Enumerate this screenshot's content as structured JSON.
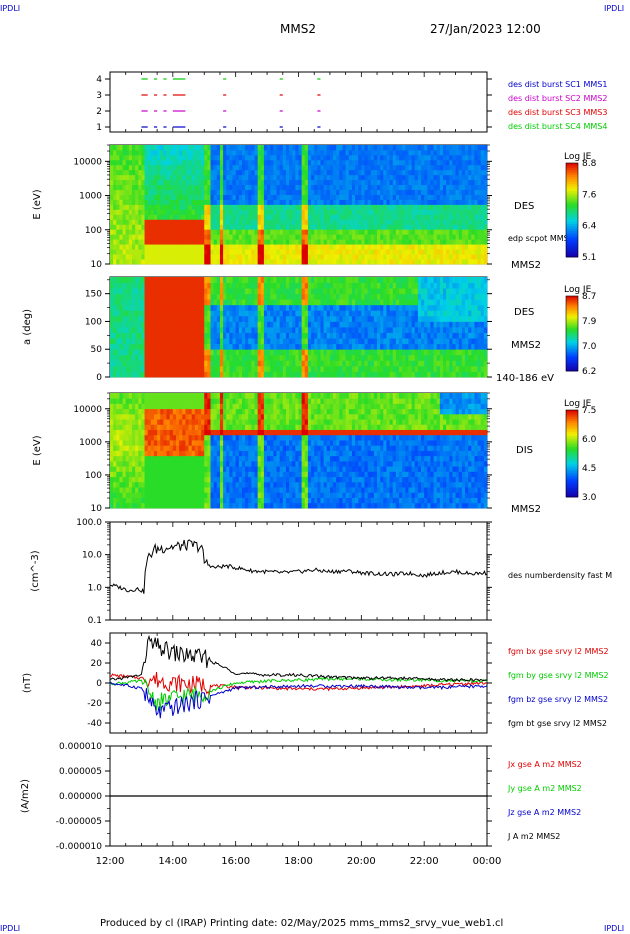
{
  "header": {
    "corner_label": "IPDLI",
    "spacecraft": "MMS2",
    "datetime": "27/Jan/2023 12:00"
  },
  "footer": {
    "text": "Produced by cl (IRAP)   Printing date: 02/May/2025   mms_mms2_srvy_vue_web1.cl"
  },
  "colors": {
    "red": "#e00000",
    "green": "#00cc00",
    "blue": "#0000cc",
    "magenta": "#cc00cc",
    "black": "#000000"
  },
  "chart_data": [
    {
      "type": "table",
      "id": "burst-availability",
      "yticks": [
        "1",
        "2",
        "3",
        "4"
      ],
      "legend": [
        {
          "label": "des dist burst SC1 MMS1",
          "color": "#0000cc"
        },
        {
          "label": "des dist burst SC2 MMS2",
          "color": "#cc00cc"
        },
        {
          "label": "des dist burst SC3 MMS3",
          "color": "#e00000"
        },
        {
          "label": "des dist burst SC4 MMS4",
          "color": "#00cc00"
        }
      ],
      "segments_hours": [
        [
          13.0,
          13.2
        ],
        [
          13.4,
          13.5
        ],
        [
          13.7,
          13.8
        ],
        [
          14.0,
          14.4
        ],
        [
          15.6,
          15.7
        ],
        [
          17.4,
          17.5
        ],
        [
          18.6,
          18.7
        ]
      ]
    },
    {
      "type": "heatmap",
      "id": "des-energy",
      "ylabel": "E (eV)",
      "yscale": "log",
      "ylim": [
        10,
        30000
      ],
      "yticks": [
        "10",
        "100",
        "1000",
        "10000"
      ],
      "label": "DES",
      "overlay_label": "edp scpot MMS2",
      "sc_label": "MMS2",
      "colorbar": {
        "title": "Log JE",
        "ticks": [
          "8.8",
          "7.6",
          "6.4",
          "5.1"
        ]
      }
    },
    {
      "type": "heatmap",
      "id": "des-pitch",
      "ylabel": "a (deg)",
      "ylim": [
        0,
        180
      ],
      "yticks": [
        "0",
        "50",
        "100",
        "150"
      ],
      "label": "DES",
      "sc_label": "MMS2",
      "energy_range": "140-186 eV",
      "colorbar": {
        "title": "Log JE",
        "ticks": [
          "8.7",
          "7.9",
          "7.0",
          "6.2"
        ]
      }
    },
    {
      "type": "heatmap",
      "id": "dis-energy",
      "ylabel": "E (eV)",
      "yscale": "log",
      "ylim": [
        10,
        30000
      ],
      "yticks": [
        "10",
        "100",
        "1000",
        "10000"
      ],
      "label": "DIS",
      "sc_label": "MMS2",
      "colorbar": {
        "title": "Log JE",
        "ticks": [
          "7.5",
          "6.0",
          "4.5",
          "3.0"
        ]
      }
    },
    {
      "type": "line",
      "id": "density",
      "ylabel": "(cm^-3)",
      "yscale": "log",
      "ylim": [
        0.1,
        100
      ],
      "yticks": [
        "0.1",
        "1.0",
        "10.0",
        "100.0"
      ],
      "series": [
        {
          "name": "des numberdensity fast M",
          "color": "#000000",
          "x": [
            12.0,
            12.3,
            12.6,
            12.9,
            13.1,
            13.15,
            13.4,
            13.8,
            14.2,
            14.6,
            14.9,
            15.0,
            15.3,
            15.7,
            16.0,
            16.5,
            17.0,
            17.5,
            18.0,
            18.5,
            19.0,
            19.5,
            20.0,
            20.5,
            21.0,
            21.5,
            22.0,
            22.5,
            23.0,
            23.5,
            24.0
          ],
          "y": [
            1.2,
            1.0,
            0.8,
            0.9,
            0.7,
            5.0,
            14.0,
            17.0,
            18.0,
            20.0,
            17.0,
            6.0,
            4.0,
            4.5,
            4.0,
            3.2,
            3.0,
            2.8,
            3.0,
            3.4,
            3.0,
            3.2,
            2.8,
            2.6,
            2.5,
            2.7,
            2.3,
            2.8,
            3.0,
            2.6,
            2.8
          ]
        }
      ]
    },
    {
      "type": "line",
      "id": "magnetic-field",
      "ylabel": "(nT)",
      "ylim": [
        -50,
        50
      ],
      "yticks": [
        "-40",
        "-20",
        "0",
        "20",
        "40"
      ],
      "series": [
        {
          "name": "fgm bx gse srvy l2 MMS2",
          "color": "#e00000",
          "x": [
            12,
            13,
            13.5,
            14,
            15,
            16,
            17,
            18,
            19,
            20,
            21,
            22,
            23,
            24
          ],
          "y": [
            8,
            5,
            3,
            0,
            -2,
            -4,
            -5,
            -6,
            -6,
            -5,
            -4,
            -3,
            -1,
            0
          ]
        },
        {
          "name": "fgm by gse srvy l2 MMS2",
          "color": "#00cc00",
          "x": [
            12,
            13,
            13.5,
            14,
            15,
            16,
            17,
            18,
            19,
            20,
            21,
            22,
            23,
            24
          ],
          "y": [
            -1,
            2,
            -20,
            -15,
            -10,
            0,
            2,
            3,
            4,
            4,
            3,
            3,
            2,
            2
          ]
        },
        {
          "name": "fgm bz gse srvy l2 MMS2",
          "color": "#0000cc",
          "x": [
            12,
            13,
            13.5,
            14,
            15,
            16,
            17,
            18,
            19,
            20,
            21,
            22,
            23,
            24
          ],
          "y": [
            0,
            -5,
            -30,
            -25,
            -15,
            -5,
            -4,
            -3,
            -3,
            -3,
            -4,
            -5,
            -4,
            -3
          ]
        },
        {
          "name": "fgm bt gse srvy l2 MMS2",
          "color": "#000000",
          "x": [
            12,
            13,
            13.2,
            14,
            15,
            16,
            17,
            18,
            19,
            20,
            21,
            22,
            23,
            24
          ],
          "y": [
            3,
            8,
            40,
            30,
            25,
            10,
            8,
            8,
            6,
            5,
            5,
            4,
            3,
            3
          ]
        }
      ]
    },
    {
      "type": "line",
      "id": "current-density",
      "ylabel": "(A/m2)",
      "ylim": [
        -1e-05,
        1e-05
      ],
      "yticks": [
        "-0.000010",
        "-0.000005",
        "0.000000",
        "0.000005",
        "0.000010"
      ],
      "series": [
        {
          "name": "Jx gse A m2 MMS2",
          "color": "#e00000"
        },
        {
          "name": "Jy gse A m2 MMS2",
          "color": "#00cc00"
        },
        {
          "name": "Jz gse A m2 MMS2",
          "color": "#0000cc"
        },
        {
          "name": "J A m2 MMS2",
          "color": "#000000"
        }
      ],
      "xlabel_ticks": [
        "12:00",
        "14:00",
        "16:00",
        "18:00",
        "20:00",
        "22:00",
        "00:00"
      ]
    }
  ]
}
